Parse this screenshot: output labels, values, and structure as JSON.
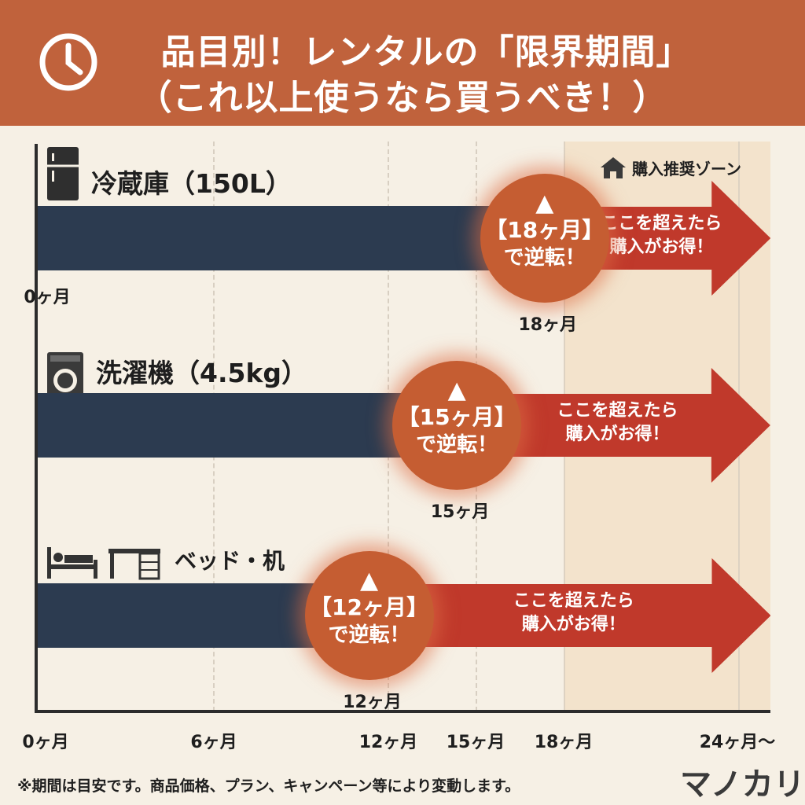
{
  "header": {
    "line1": "品目別！レンタルの「限界期間」",
    "line2": "（これ以上使うなら買うべき！）",
    "icon": "clock-icon",
    "color": "#c0623c"
  },
  "zone_label": "購入推奨ゾーン",
  "axis": {
    "ticks": [
      {
        "label": "0ヶ月",
        "month": 0
      },
      {
        "label": "6ヶ月",
        "month": 6
      },
      {
        "label": "12ヶ月",
        "month": 12
      },
      {
        "label": "15ヶ月",
        "month": 15
      },
      {
        "label": "18ヶ月",
        "month": 18
      },
      {
        "label": "24ヶ月〜",
        "month": 24
      }
    ],
    "row_start_label": "0ヶ月"
  },
  "items": [
    {
      "title": "冷蔵庫（150L）",
      "icon": "refrigerator-icon",
      "months": 18,
      "badge": "【18ヶ月】",
      "badge_sub": "で逆転！",
      "arrow_text1": "ここを超えたら",
      "arrow_text2": "購入がお得！",
      "month_label": "18ヶ月"
    },
    {
      "title": "洗濯機（4.5kg）",
      "icon": "washing-machine-icon",
      "months": 15,
      "badge": "【15ヶ月】",
      "badge_sub": "で逆転！",
      "arrow_text1": "ここを超えたら",
      "arrow_text2": "購入がお得！",
      "month_label": "15ヶ月"
    },
    {
      "title": "ベッド・机",
      "icon": "bed-desk-icon",
      "months": 12,
      "badge": "【12ヶ月】",
      "badge_sub": "で逆転！",
      "arrow_text1": "ここを超えたら",
      "arrow_text2": "購入がお得！",
      "month_label": "12ヶ月"
    }
  ],
  "colors": {
    "bar": "#2c3b50",
    "badge": "#c55d32",
    "arrow": "#c0392b",
    "zone": "#f3e3cc"
  },
  "footer": {
    "note": "※期間は目安です。商品価格、プラン、キャンペーン等により変動します。",
    "logo": "マノカリ"
  }
}
